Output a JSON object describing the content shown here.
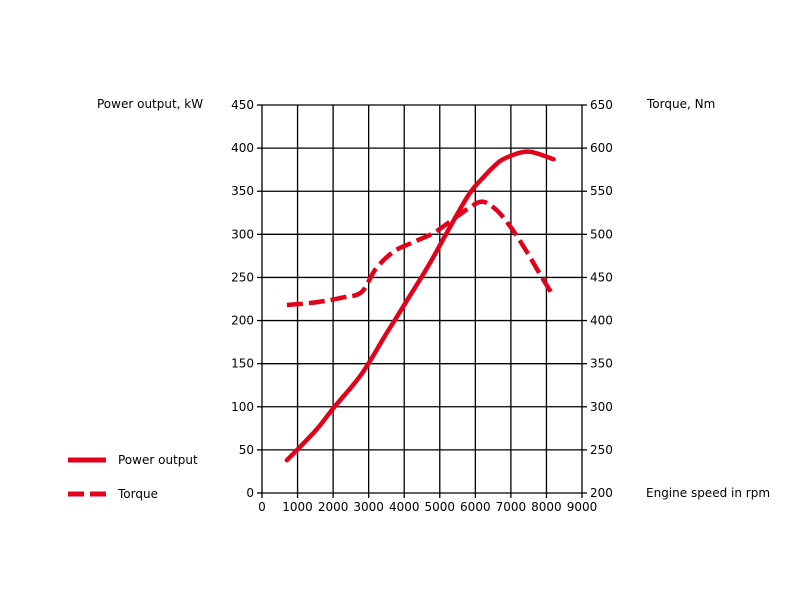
{
  "chart_data": {
    "type": "line",
    "left_axis_label": "Power output, kW",
    "right_axis_label": "Torque, Nm",
    "xlabel": "Engine speed in rpm",
    "xlim": [
      0,
      9000
    ],
    "ylim_left": [
      0,
      450
    ],
    "ylim_right": [
      200,
      650
    ],
    "x_ticks": [
      0,
      1000,
      2000,
      3000,
      4000,
      5000,
      6000,
      7000,
      8000,
      9000
    ],
    "left_ticks": [
      0,
      50,
      100,
      150,
      200,
      250,
      300,
      350,
      400,
      450
    ],
    "right_ticks": [
      200,
      250,
      300,
      350,
      400,
      450,
      500,
      550,
      600,
      650
    ],
    "grid": true,
    "legend_position": "bottom-left",
    "color": "#e3001b",
    "series": [
      {
        "name": "Power output",
        "axis": "left",
        "style": "solid",
        "points": [
          [
            700,
            38
          ],
          [
            1500,
            72
          ],
          [
            2000,
            98
          ],
          [
            2800,
            138
          ],
          [
            3500,
            185
          ],
          [
            4000,
            218
          ],
          [
            4700,
            265
          ],
          [
            5200,
            302
          ],
          [
            5800,
            345
          ],
          [
            6200,
            365
          ],
          [
            6700,
            385
          ],
          [
            7200,
            394
          ],
          [
            7500,
            396
          ],
          [
            7800,
            393
          ],
          [
            8200,
            387
          ]
        ]
      },
      {
        "name": "Torque",
        "axis": "right",
        "style": "dashed",
        "points": [
          [
            700,
            418
          ],
          [
            1500,
            421
          ],
          [
            2300,
            427
          ],
          [
            2800,
            433
          ],
          [
            3200,
            460
          ],
          [
            3700,
            480
          ],
          [
            4200,
            490
          ],
          [
            4800,
            501
          ],
          [
            5300,
            515
          ],
          [
            5800,
            530
          ],
          [
            6200,
            538
          ],
          [
            6600,
            528
          ],
          [
            7000,
            508
          ],
          [
            7400,
            483
          ],
          [
            7800,
            455
          ],
          [
            8200,
            428
          ]
        ]
      }
    ]
  }
}
